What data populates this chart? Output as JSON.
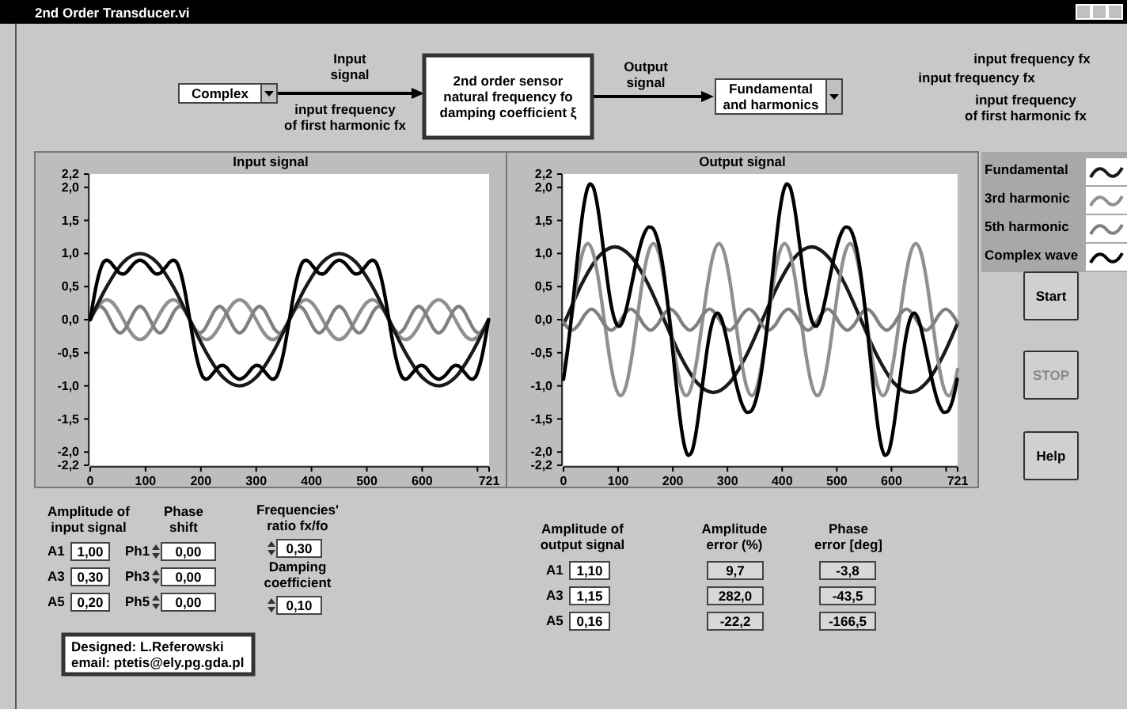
{
  "chart_data": [
    {
      "type": "line",
      "title": "Input signal",
      "xlim": [
        0,
        721
      ],
      "xticks": [
        0,
        100,
        200,
        300,
        400,
        500,
        600,
        {
          "value": 700,
          "label": null
        },
        721
      ],
      "ylim": [
        -2.2,
        2.2
      ],
      "yticks": [
        {
          "value": -2.2,
          "label": "-2,2"
        },
        {
          "value": -2,
          "label": "-2,0"
        },
        {
          "value": -1.5,
          "label": "-1,5"
        },
        {
          "value": -1,
          "label": "-1,0"
        },
        {
          "value": -0.5,
          "label": "-0,5"
        },
        {
          "value": 0,
          "label": "0,0"
        },
        {
          "value": 0.5,
          "label": "0,5"
        },
        {
          "value": 1,
          "label": "1,0"
        },
        {
          "value": 1.5,
          "label": "1,5"
        },
        {
          "value": 2,
          "label": "2,0"
        },
        {
          "value": 2.2,
          "label": "2,2"
        }
      ],
      "grid": false,
      "marker": "none",
      "line_style": "solid",
      "series": [
        {
          "color": "#909090",
          "x": [
            0,
            10,
            20,
            30,
            40,
            50,
            60,
            70,
            80,
            90,
            100,
            110,
            120,
            130,
            140,
            150,
            160,
            170,
            180,
            190,
            200,
            210,
            220,
            230,
            240,
            250,
            260,
            270,
            280,
            290,
            300,
            310,
            320,
            330,
            340,
            350,
            360,
            370,
            380,
            390,
            400,
            410,
            420,
            430,
            440,
            450,
            460,
            470,
            480,
            490,
            500,
            510,
            520,
            530,
            540,
            550,
            560,
            570,
            580,
            590,
            600,
            610,
            620,
            630,
            640,
            650,
            660,
            670,
            680,
            690,
            700,
            710,
            720
          ],
          "values": [
            0,
            0.15,
            0.26,
            0.3,
            0.26,
            0.15,
            0,
            -0.15,
            -0.26,
            -0.3,
            -0.26,
            -0.15,
            0,
            0.15,
            0.26,
            0.3,
            0.26,
            0.15,
            0,
            -0.15,
            -0.26,
            -0.3,
            -0.26,
            -0.15,
            0,
            0.15,
            0.26,
            0.3,
            0.26,
            0.15,
            0,
            -0.15,
            -0.26,
            -0.3,
            -0.26,
            -0.15,
            0,
            0.15,
            0.26,
            0.3,
            0.26,
            0.15,
            0,
            -0.15,
            -0.26,
            -0.3,
            -0.26,
            -0.15,
            0,
            0.15,
            0.26,
            0.3,
            0.26,
            0.15,
            0,
            -0.15,
            -0.26,
            -0.3,
            -0.26,
            -0.15,
            0,
            0.15,
            0.26,
            0.3,
            0.26,
            0.15,
            0,
            -0.15,
            -0.26,
            -0.3,
            -0.26,
            -0.15,
            0
          ]
        },
        {
          "color": "#808080",
          "x": [
            0,
            9,
            18,
            27,
            36,
            45,
            54,
            63,
            72,
            81,
            90,
            99,
            108,
            117,
            126,
            135,
            144,
            153,
            162,
            171,
            180,
            189,
            198,
            207,
            216,
            225,
            234,
            243,
            252,
            261,
            270,
            279,
            288,
            297,
            306,
            315,
            324,
            333,
            342,
            351,
            360,
            369,
            378,
            387,
            396,
            405,
            414,
            423,
            432,
            441,
            450,
            459,
            468,
            477,
            486,
            495,
            504,
            513,
            522,
            531,
            540,
            549,
            558,
            567,
            576,
            585,
            594,
            603,
            612,
            621,
            630,
            639,
            648,
            657,
            666,
            675,
            684,
            693,
            702,
            711,
            720
          ],
          "values": [
            0,
            0.14,
            0.2,
            0.14,
            0,
            -0.14,
            -0.2,
            -0.14,
            0,
            0.14,
            0.2,
            0.14,
            0,
            -0.14,
            -0.2,
            -0.14,
            0,
            0.14,
            0.2,
            0.14,
            0,
            -0.14,
            -0.2,
            -0.14,
            0,
            0.14,
            0.2,
            0.14,
            0,
            -0.14,
            -0.2,
            -0.14,
            0,
            0.14,
            0.2,
            0.14,
            0,
            -0.14,
            -0.2,
            -0.14,
            0,
            0.14,
            0.2,
            0.14,
            0,
            -0.14,
            -0.2,
            -0.14,
            0,
            0.14,
            0.2,
            0.14,
            0,
            -0.14,
            -0.2,
            -0.14,
            0,
            0.14,
            0.2,
            0.14,
            0,
            -0.14,
            -0.2,
            -0.14,
            0,
            0.14,
            0.2,
            0.14,
            0,
            -0.14,
            -0.2,
            -0.14,
            0,
            0.14,
            0.2,
            0.14,
            0,
            -0.14,
            -0.2,
            -0.14,
            0
          ]
        },
        {
          "color": "#1a1a1a",
          "x": [
            0,
            30,
            60,
            90,
            120,
            150,
            180,
            210,
            240,
            270,
            300,
            330,
            360,
            390,
            420,
            450,
            480,
            510,
            540,
            570,
            600,
            630,
            660,
            690,
            720
          ],
          "values": [
            0,
            0.5,
            0.87,
            1,
            0.87,
            0.5,
            0,
            -0.5,
            -0.87,
            -1,
            -0.87,
            -0.5,
            0,
            0.5,
            0.87,
            1,
            0.87,
            0.5,
            0,
            -0.5,
            -0.87,
            -1,
            -0.87,
            -0.5,
            0
          ]
        },
        {
          "color": "#000000",
          "x": [
            0,
            6,
            12,
            18,
            24,
            30,
            36,
            42,
            48,
            54,
            60,
            66,
            72,
            78,
            84,
            90,
            96,
            102,
            108,
            114,
            120,
            126,
            132,
            138,
            144,
            150,
            156,
            162,
            168,
            174,
            180,
            186,
            192,
            198,
            204,
            210,
            216,
            222,
            228,
            234,
            240,
            246,
            252,
            258,
            264,
            270,
            276,
            282,
            288,
            294,
            300,
            306,
            312,
            318,
            324,
            330,
            336,
            342,
            348,
            354,
            360,
            366,
            372,
            378,
            384,
            390,
            396,
            402,
            408,
            414,
            420,
            426,
            432,
            438,
            444,
            450,
            456,
            462,
            468,
            474,
            480,
            486,
            492,
            498,
            504,
            510,
            516,
            522,
            528,
            534,
            540,
            546,
            552,
            558,
            564,
            570,
            576,
            582,
            588,
            594,
            600,
            606,
            612,
            618,
            624,
            630,
            636,
            642,
            648,
            654,
            660,
            666,
            672,
            678,
            684,
            690,
            696,
            702,
            708,
            714,
            720
          ],
          "values": [
            0,
            0.3,
            0.56,
            0.75,
            0.87,
            0.9,
            0.87,
            0.81,
            0.75,
            0.7,
            0.69,
            0.72,
            0.78,
            0.84,
            0.88,
            0.9,
            0.88,
            0.84,
            0.78,
            0.72,
            0.69,
            0.7,
            0.75,
            0.81,
            0.87,
            0.9,
            0.87,
            0.75,
            0.56,
            0.3,
            0,
            -0.3,
            -0.56,
            -0.75,
            -0.87,
            -0.9,
            -0.87,
            -0.81,
            -0.75,
            -0.7,
            -0.69,
            -0.72,
            -0.78,
            -0.84,
            -0.88,
            -0.9,
            -0.88,
            -0.84,
            -0.78,
            -0.72,
            -0.69,
            -0.7,
            -0.75,
            -0.81,
            -0.87,
            -0.9,
            -0.87,
            -0.75,
            -0.56,
            -0.3,
            0,
            0.3,
            0.56,
            0.75,
            0.87,
            0.9,
            0.87,
            0.81,
            0.75,
            0.7,
            0.69,
            0.72,
            0.78,
            0.84,
            0.88,
            0.9,
            0.88,
            0.84,
            0.78,
            0.72,
            0.69,
            0.7,
            0.75,
            0.81,
            0.87,
            0.9,
            0.87,
            0.75,
            0.56,
            0.3,
            0,
            -0.3,
            -0.56,
            -0.75,
            -0.87,
            -0.9,
            -0.87,
            -0.81,
            -0.75,
            -0.7,
            -0.69,
            -0.72,
            -0.78,
            -0.84,
            -0.88,
            -0.9,
            -0.88,
            -0.84,
            -0.78,
            -0.72,
            -0.69,
            -0.7,
            -0.75,
            -0.81,
            -0.87,
            -0.9,
            -0.87,
            -0.75,
            -0.56,
            -0.3,
            0
          ]
        }
      ],
      "annotations": [
        "2nd Order Transducer.vi",
        "Complex",
        "Input\nsignal",
        "input frequency\nof first harmonic fx",
        "2nd order sensor\nnatural frequency fo\ndamping coefficient ξ",
        "Output\nsignal",
        "Fundamental\nand harmonics",
        "input frequency fx",
        "input frequency fx",
        "input frequency\nof first harmonic  fx",
        "Amplitude of\ninput signal",
        "A1",
        "1,00",
        "A3",
        "0,30",
        "A5",
        "0,20",
        "Phase\nshift",
        "Ph1",
        "0,00",
        "Ph3",
        "0,00",
        "Ph5",
        "0,00",
        "Frequencies'\nratio fx/fo",
        "0,30",
        "Damping\ncoefficient",
        "0,10",
        "Designed: L.Referowski\nemail: ptetis@ely.pg.gda.pl"
      ]
    },
    {
      "type": "line",
      "title": "Output signal",
      "xlim": [
        0,
        721
      ],
      "xticks": [
        0,
        100,
        200,
        300,
        400,
        500,
        600,
        {
          "value": 700,
          "label": null
        },
        721
      ],
      "ylim": [
        -2.2,
        2.2
      ],
      "yticks": [
        {
          "value": -2.2,
          "label": "-2,2"
        },
        {
          "value": -2,
          "label": "-2,0"
        },
        {
          "value": -1.5,
          "label": "-1,5"
        },
        {
          "value": -1,
          "label": "-1,0"
        },
        {
          "value": -0.5,
          "label": "-0,5"
        },
        {
          "value": 0,
          "label": "0,0"
        },
        {
          "value": 0.5,
          "label": "0,5"
        },
        {
          "value": 1,
          "label": "1,0"
        },
        {
          "value": 1.5,
          "label": "1,5"
        },
        {
          "value": 2,
          "label": "2,0"
        },
        {
          "value": 2.2,
          "label": "2,2"
        }
      ],
      "grid": false,
      "marker": "none",
      "line_style": "solid",
      "legend": "right",
      "series": [
        {
          "name": "Fundamental",
          "color": "#1a1a1a",
          "x": [
            0,
            4,
            34,
            64,
            94,
            124,
            154,
            184,
            214,
            244,
            274,
            304,
            334,
            364,
            394,
            424,
            454,
            484,
            514,
            544,
            574,
            604,
            634,
            664,
            694,
            721
          ],
          "values": [
            -0.07,
            0,
            0.55,
            0.95,
            1.1,
            0.95,
            0.55,
            0,
            -0.55,
            -0.95,
            -1.1,
            -0.95,
            -0.55,
            0,
            0.55,
            0.95,
            1.1,
            0.95,
            0.55,
            0,
            -0.55,
            -0.95,
            -1.1,
            -0.95,
            -0.55,
            -0.05
          ]
        },
        {
          "name": "3rd harmonic",
          "color": "#909090",
          "x": [
            0,
            4.5,
            14.5,
            24.5,
            34.5,
            44.5,
            54.5,
            64.5,
            74.5,
            84.5,
            94.5,
            104.5,
            114.5,
            124.5,
            134.5,
            144.5,
            154.5,
            164.5,
            174.5,
            184.5,
            194.5,
            204.5,
            214.5,
            224.5,
            234.5,
            244.5,
            254.5,
            264.5,
            274.5,
            284.5,
            294.5,
            304.5,
            314.5,
            324.5,
            334.5,
            344.5,
            354.5,
            364.5,
            374.5,
            384.5,
            394.5,
            404.5,
            414.5,
            424.5,
            434.5,
            444.5,
            454.5,
            464.5,
            474.5,
            484.5,
            494.5,
            504.5,
            514.5,
            524.5,
            534.5,
            544.5,
            554.5,
            564.5,
            574.5,
            584.5,
            594.5,
            604.5,
            614.5,
            624.5,
            634.5,
            644.5,
            654.5,
            664.5,
            674.5,
            684.5,
            694.5,
            704.5,
            714.5,
            721
          ],
          "values": [
            -0.79,
            -0.58,
            0,
            0.58,
            1,
            1.15,
            1,
            0.58,
            0,
            -0.58,
            -1,
            -1.15,
            -1,
            -0.58,
            0,
            0.58,
            1,
            1.15,
            1,
            0.58,
            0,
            -0.58,
            -1,
            -1.15,
            -1,
            -0.58,
            0,
            0.58,
            1,
            1.15,
            1,
            0.58,
            0,
            -0.58,
            -1,
            -1.15,
            -1,
            -0.58,
            0,
            0.58,
            1,
            1.15,
            1,
            0.58,
            0,
            -0.58,
            -1,
            -1.15,
            -1,
            -0.58,
            0,
            0.58,
            1,
            1.15,
            1,
            0.58,
            0,
            -0.58,
            -1,
            -1.15,
            -1,
            -0.58,
            0,
            0.58,
            1,
            1.15,
            1,
            0.58,
            0,
            -0.58,
            -1,
            -1.15,
            -1,
            -0.75
          ]
        },
        {
          "name": "5th harmonic",
          "color": "#808080",
          "x": [
            0,
            15.3,
            27.3,
            39.3,
            51.3,
            63.3,
            75.3,
            87.3,
            99.3,
            111.3,
            123.3,
            135.3,
            147.3,
            159.3,
            171.3,
            183.3,
            195.3,
            207.3,
            219.3,
            231.3,
            243.3,
            255.3,
            267.3,
            279.3,
            291.3,
            303.3,
            315.3,
            327.3,
            339.3,
            351.3,
            363.3,
            375.3,
            387.3,
            399.3,
            411.3,
            423.3,
            435.3,
            447.3,
            459.3,
            471.3,
            483.3,
            495.3,
            507.3,
            519.3,
            531.3,
            543.3,
            555.3,
            567.3,
            579.3,
            591.3,
            603.3,
            615.3,
            627.3,
            639.3,
            651.3,
            663.3,
            675.3,
            687.3,
            699.3,
            711.3,
            721
          ],
          "values": [
            -0.04,
            -0.16,
            -0.08,
            0.08,
            0.16,
            0.08,
            -0.08,
            -0.16,
            -0.08,
            0.08,
            0.16,
            0.08,
            -0.08,
            -0.16,
            -0.08,
            0.08,
            0.16,
            0.08,
            -0.08,
            -0.16,
            -0.08,
            0.08,
            0.16,
            0.08,
            -0.08,
            -0.16,
            -0.08,
            0.08,
            0.16,
            0.08,
            -0.08,
            -0.16,
            -0.08,
            0.08,
            0.16,
            0.08,
            -0.08,
            -0.16,
            -0.08,
            0.08,
            0.16,
            0.08,
            -0.08,
            -0.16,
            -0.08,
            0.08,
            0.16,
            0.08,
            -0.08,
            -0.16,
            -0.08,
            0.08,
            0.16,
            0.08,
            -0.08,
            -0.16,
            -0.08,
            0.08,
            0.16,
            0.08,
            -0.05
          ]
        },
        {
          "name": "Complex wave",
          "color": "#000000",
          "x": [
            0,
            6,
            12,
            18,
            24,
            30,
            36,
            42,
            48,
            54,
            60,
            66,
            72,
            78,
            84,
            90,
            96,
            102,
            108,
            114,
            120,
            126,
            132,
            138,
            144,
            150,
            156,
            162,
            168,
            174,
            180,
            186,
            192,
            198,
            204,
            210,
            216,
            222,
            228,
            234,
            240,
            246,
            252,
            258,
            264,
            270,
            276,
            282,
            288,
            294,
            300,
            306,
            312,
            318,
            324,
            330,
            336,
            342,
            348,
            354,
            360,
            366,
            372,
            378,
            384,
            390,
            396,
            402,
            408,
            414,
            420,
            426,
            432,
            438,
            444,
            450,
            456,
            462,
            468,
            474,
            480,
            486,
            492,
            498,
            504,
            510,
            516,
            522,
            528,
            534,
            540,
            546,
            552,
            558,
            564,
            570,
            576,
            582,
            588,
            594,
            600,
            606,
            612,
            618,
            624,
            630,
            636,
            642,
            648,
            654,
            660,
            666,
            672,
            678,
            684,
            690,
            696,
            702,
            708,
            714,
            720
          ],
          "values": [
            -0.9,
            -0.56,
            -0.15,
            0.32,
            0.81,
            1.27,
            1.66,
            1.93,
            2.05,
            2.01,
            1.82,
            1.51,
            1.13,
            0.74,
            0.38,
            0.11,
            -0.05,
            -0.1,
            -0.03,
            0.13,
            0.35,
            0.59,
            0.83,
            1.04,
            1.22,
            1.34,
            1.4,
            1.39,
            1.31,
            1.15,
            0.9,
            0.56,
            0.15,
            -0.32,
            -0.81,
            -1.27,
            -1.66,
            -1.93,
            -2.05,
            -2.01,
            -1.82,
            -1.51,
            -1.13,
            -0.74,
            -0.38,
            -0.11,
            0.05,
            0.1,
            0.03,
            -0.13,
            -0.35,
            -0.59,
            -0.83,
            -1.04,
            -1.22,
            -1.34,
            -1.4,
            -1.39,
            -1.31,
            -1.15,
            -0.9,
            -0.56,
            -0.15,
            0.32,
            0.81,
            1.27,
            1.66,
            1.93,
            2.05,
            2.01,
            1.82,
            1.51,
            1.13,
            0.74,
            0.38,
            0.11,
            -0.05,
            -0.1,
            -0.03,
            0.13,
            0.35,
            0.59,
            0.83,
            1.04,
            1.22,
            1.34,
            1.4,
            1.39,
            1.31,
            1.15,
            0.9,
            0.56,
            0.15,
            -0.32,
            -0.81,
            -1.27,
            -1.66,
            -1.93,
            -2.05,
            -2.01,
            -1.82,
            -1.51,
            -1.13,
            -0.74,
            -0.38,
            -0.11,
            0.05,
            0.1,
            0.03,
            -0.13,
            -0.35,
            -0.59,
            -0.83,
            -1.04,
            -1.22,
            -1.34,
            -1.4,
            -1.39,
            -1.31,
            -1.15,
            -0.9
          ]
        }
      ],
      "annotations": [
        "Start",
        "STOP",
        "Help",
        "Amplitude of\noutput signal",
        "A1",
        "1,10",
        "A3",
        "1,15",
        "A5",
        "0,16",
        "Amplitude\nerror (%)",
        "9,7",
        "282,0",
        "-22,2",
        "Phase\nerror [deg]",
        "-3,8",
        "-43,5",
        "-166,5"
      ]
    }
  ]
}
